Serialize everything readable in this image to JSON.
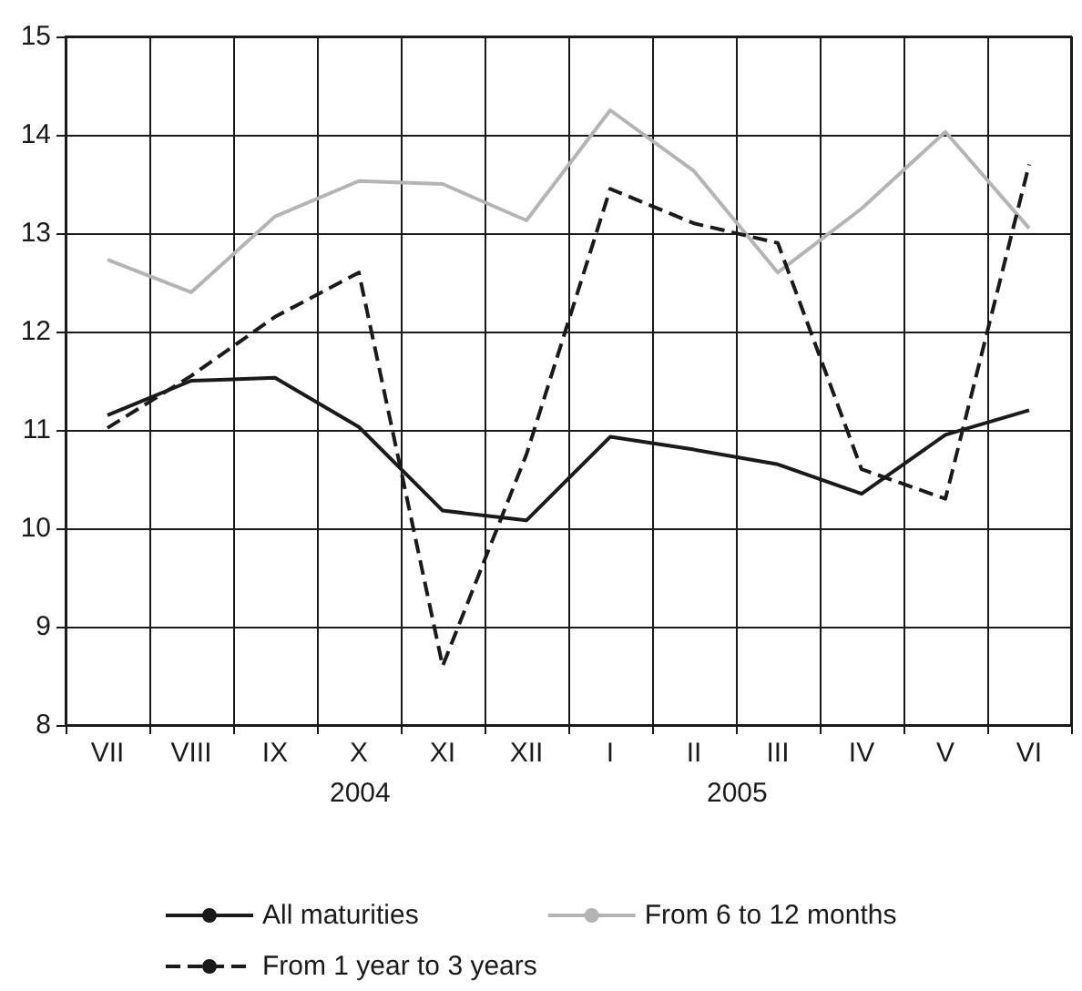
{
  "chart_data": {
    "type": "line",
    "categories": [
      "VII",
      "VIII",
      "IX",
      "X",
      "XI",
      "XII",
      "I",
      "II",
      "III",
      "IV",
      "V",
      "VI"
    ],
    "series": [
      {
        "name": "All maturities",
        "color": "#1a1a1a",
        "line_style": "solid",
        "values": [
          11.15,
          11.5,
          11.53,
          11.03,
          10.18,
          10.08,
          10.93,
          10.8,
          10.65,
          10.35,
          10.95,
          11.2
        ]
      },
      {
        "name": "From 6 to 12 months",
        "color": "#b4b4b4",
        "line_style": "solid",
        "values": [
          12.73,
          12.4,
          13.17,
          13.53,
          13.5,
          13.13,
          14.25,
          13.63,
          12.6,
          13.25,
          14.03,
          13.05
        ]
      },
      {
        "name": "From 1 year to 3 years",
        "color": "#1a1a1a",
        "line_style": "dashed",
        "values": [
          11.02,
          11.55,
          12.15,
          12.6,
          8.6,
          10.75,
          13.45,
          13.1,
          12.9,
          10.6,
          10.3,
          13.7
        ]
      }
    ],
    "ylim": [
      8,
      15
    ],
    "yticks": [
      8,
      9,
      10,
      11,
      12,
      13,
      14,
      15
    ],
    "grid": true,
    "legend": "bottom",
    "marker": "none",
    "annotations": [
      "2004",
      "2005"
    ]
  }
}
